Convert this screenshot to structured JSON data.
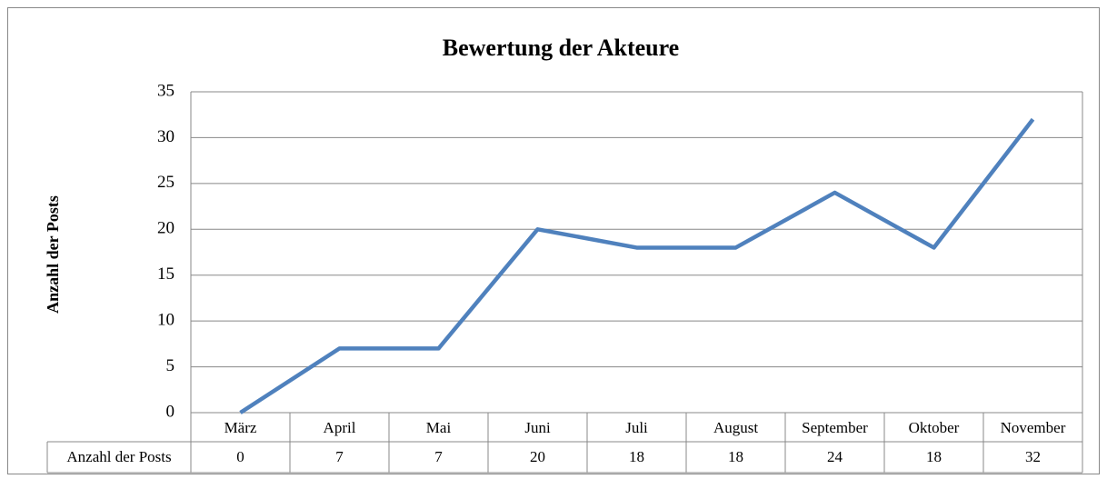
{
  "chart_data": {
    "type": "line",
    "title": "Bewertung der Akteure",
    "ylabel": "Anzahl der Posts",
    "categories": [
      "März",
      "April",
      "Mai",
      "Juni",
      "Juli",
      "August",
      "September",
      "Oktober",
      "November"
    ],
    "series": [
      {
        "name": "Anzahl der Posts",
        "color": "#4f81bd",
        "values": [
          0,
          7,
          7,
          20,
          18,
          18,
          24,
          18,
          32
        ]
      }
    ],
    "ylim": [
      0,
      35
    ],
    "yticks": [
      0,
      5,
      10,
      15,
      20,
      25,
      30,
      35
    ],
    "grid": true,
    "data_table": true
  }
}
